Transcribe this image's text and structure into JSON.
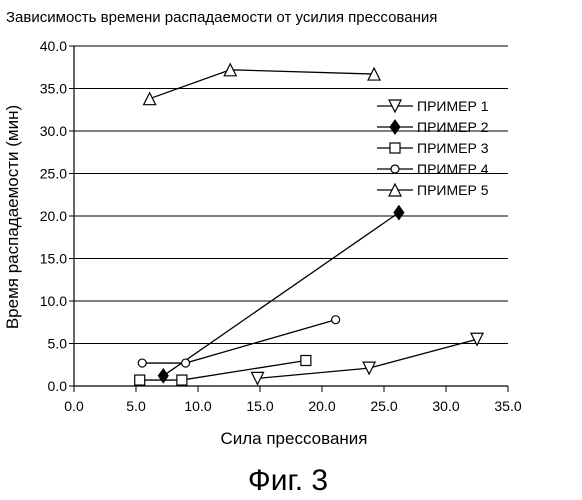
{
  "chart_data": {
    "type": "line",
    "title": "Зависимость времени распадаемости от усилия прессования",
    "xlabel": "Сила прессования",
    "ylabel": "Время распадаемости (мин)",
    "xlim": [
      0,
      35
    ],
    "ylim": [
      0,
      40
    ],
    "x_ticks": [
      "0.0",
      "5.0",
      "10.0",
      "15.0",
      "20.0",
      "25.0",
      "30.0",
      "35.0"
    ],
    "y_ticks": [
      "0.0",
      "5.0",
      "10.0",
      "15.0",
      "20.0",
      "25.0",
      "30.0",
      "35.0",
      "40.0"
    ],
    "grid": "horizontal",
    "legend_position": "right",
    "series": [
      {
        "name": "ПРИМЕР 1",
        "marker": "triangle-down",
        "x": [
          14.8,
          23.8,
          32.5
        ],
        "y": [
          0.9,
          2.1,
          5.5
        ]
      },
      {
        "name": "ПРИМЕР 2",
        "marker": "diamond-filled",
        "x": [
          7.2,
          26.2
        ],
        "y": [
          1.2,
          20.4
        ]
      },
      {
        "name": "ПРИМЕР 3",
        "marker": "square",
        "x": [
          5.3,
          8.7,
          18.7
        ],
        "y": [
          0.7,
          0.7,
          3.0
        ]
      },
      {
        "name": "ПРИМЕР 4",
        "marker": "circle",
        "x": [
          5.5,
          9.0,
          21.1
        ],
        "y": [
          2.7,
          2.7,
          7.8
        ]
      },
      {
        "name": "ПРИМЕР 5",
        "marker": "triangle-up",
        "x": [
          6.1,
          12.6,
          24.2
        ],
        "y": [
          33.8,
          37.2,
          36.7
        ]
      }
    ]
  },
  "caption": "Фиг. 3"
}
